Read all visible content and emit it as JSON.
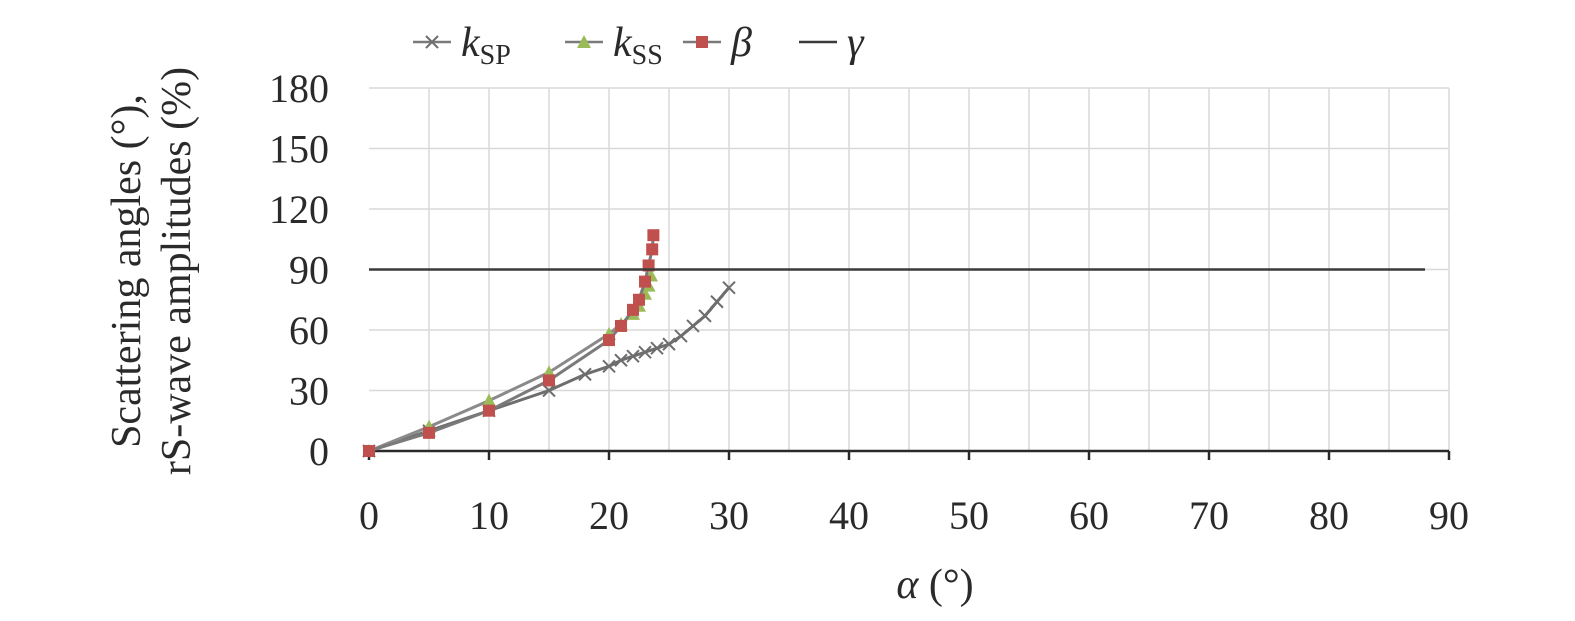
{
  "chart_data": {
    "type": "line",
    "xlabel_symbol": "α",
    "xlabel_unit": " (°)",
    "ylabel_lines": [
      "Scattering angles (°),",
      "rS-wave amplitudes (%)"
    ],
    "xlim": [
      0,
      90
    ],
    "ylim": [
      0,
      180
    ],
    "x_ticks": [
      0,
      10,
      20,
      30,
      40,
      50,
      60,
      70,
      80,
      90
    ],
    "y_ticks": [
      0,
      30,
      60,
      90,
      120,
      150,
      180
    ],
    "grid": true,
    "legend_position": "top",
    "series": [
      {
        "name": "k",
        "subscript": "SP",
        "color": "#6e6e6e",
        "marker": "x",
        "points": [
          [
            0,
            0
          ],
          [
            5,
            10
          ],
          [
            10,
            20
          ],
          [
            15,
            30
          ],
          [
            18,
            38
          ],
          [
            20,
            42
          ],
          [
            21,
            45
          ],
          [
            22,
            47
          ],
          [
            23,
            49
          ],
          [
            24,
            51
          ],
          [
            25,
            53
          ],
          [
            26,
            57
          ],
          [
            27,
            62
          ],
          [
            28,
            67
          ],
          [
            29,
            74
          ],
          [
            30,
            81
          ]
        ]
      },
      {
        "name": "k",
        "subscript": "SS",
        "color": "#9bbb59",
        "marker": "triangle",
        "points": [
          [
            0,
            0
          ],
          [
            5,
            12
          ],
          [
            10,
            25
          ],
          [
            15,
            39
          ],
          [
            20,
            58
          ],
          [
            21,
            63
          ],
          [
            22,
            68
          ],
          [
            22.5,
            72
          ],
          [
            23,
            78
          ],
          [
            23.3,
            82
          ],
          [
            23.5,
            87
          ]
        ]
      },
      {
        "name": "β",
        "subscript": "",
        "color": "#c0504d",
        "marker": "square",
        "points": [
          [
            0,
            0
          ],
          [
            5,
            9
          ],
          [
            10,
            20
          ],
          [
            15,
            35
          ],
          [
            20,
            55
          ],
          [
            21,
            62
          ],
          [
            22,
            70
          ],
          [
            22.5,
            75
          ],
          [
            23,
            84
          ],
          [
            23.3,
            92
          ],
          [
            23.6,
            100
          ],
          [
            23.7,
            107
          ]
        ]
      },
      {
        "name": "γ",
        "subscript": "",
        "color": "#3a3a3a",
        "marker": "none",
        "points": [
          [
            0,
            90
          ],
          [
            88,
            90
          ]
        ]
      }
    ]
  }
}
